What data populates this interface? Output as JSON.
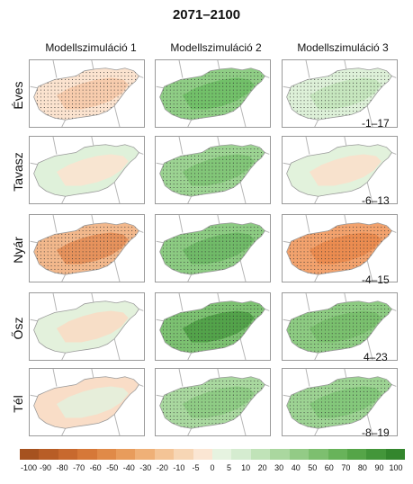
{
  "title": "2071–2100",
  "columns": [
    "Modellszimuláció 1",
    "Modellszimuláció 2",
    "Modellszimuláció 3"
  ],
  "rows": [
    {
      "label": "Éves",
      "range": "-1–17"
    },
    {
      "label": "Tavasz",
      "range": "-6–13"
    },
    {
      "label": "Nyár",
      "range": "-4–15"
    },
    {
      "label": "Ősz",
      "range": "4–23"
    },
    {
      "label": "Tél",
      "range": "-8–19"
    }
  ],
  "legend": {
    "colors": [
      "#a6521f",
      "#b85d26",
      "#c8692e",
      "#d67838",
      "#e08a48",
      "#e89c5c",
      "#efb077",
      "#f4c496",
      "#f7d6b5",
      "#fbe6d3",
      "#e6f3e0",
      "#d5ecd0",
      "#c0e3b8",
      "#aad79f",
      "#93cb86",
      "#7dbf6f",
      "#68b35a",
      "#55a548",
      "#43963a",
      "#33862d"
    ],
    "labels": [
      "-100",
      "-90",
      "-80",
      "-70",
      "-60",
      "-50",
      "-40",
      "-30",
      "-20",
      "-10",
      "-5",
      "0",
      "5",
      "10",
      "20",
      "30",
      "40",
      "50",
      "60",
      "70",
      "80",
      "90",
      "100"
    ]
  },
  "maps": [
    [
      {
        "base": "#fbe3cf",
        "patch": "#f6c9a8",
        "dots": true
      },
      {
        "base": "#8fcd85",
        "patch": "#6fbf66",
        "dots": true
      },
      {
        "base": "#ddf0d8",
        "patch": "#c3e4bb",
        "dots": true
      }
    ],
    [
      {
        "base": "#dff1da",
        "patch": "#fbe3cf",
        "dots": false
      },
      {
        "base": "#9cd392",
        "patch": "#7fc476",
        "dots": true
      },
      {
        "base": "#e2f2dc",
        "patch": "#fbe0cb",
        "dots": false
      }
    ],
    [
      {
        "base": "#f2b88c",
        "patch": "#e48e57",
        "dots": true
      },
      {
        "base": "#8ccb82",
        "patch": "#6db865",
        "dots": true
      },
      {
        "base": "#f2a26d",
        "patch": "#ea8a4c",
        "dots": true
      }
    ],
    [
      {
        "base": "#e3f1dc",
        "patch": "#f8dcc4",
        "dots": false
      },
      {
        "base": "#7cc171",
        "patch": "#4fa046",
        "dots": true
      },
      {
        "base": "#8dcb82",
        "patch": "#78bf6c",
        "dots": true
      }
    ],
    [
      {
        "base": "#f9ddc7",
        "patch": "#e3f0dc",
        "dots": false
      },
      {
        "base": "#a9d89f",
        "patch": "#8ccb82",
        "dots": true
      },
      {
        "base": "#9dd393",
        "patch": "#82c679",
        "dots": true
      }
    ]
  ]
}
